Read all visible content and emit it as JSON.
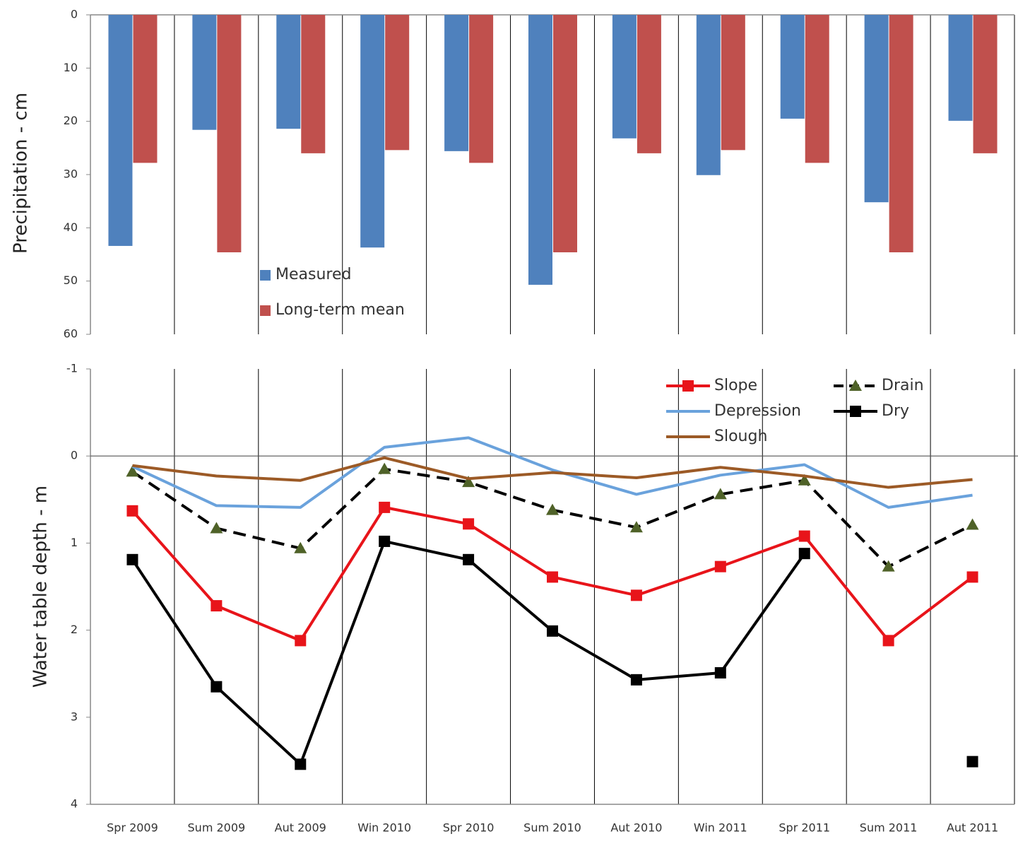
{
  "chart_data": [
    {
      "type": "bar",
      "ylabel": "Precipitation - cm",
      "ylim": [
        0,
        60
      ],
      "y_reversed": true,
      "yticks": [
        0,
        10,
        20,
        30,
        40,
        50,
        60
      ],
      "legend": "bottom-left",
      "series": [
        {
          "name": "Measured",
          "color": "#4f81bd",
          "values": [
            43.4,
            21.6,
            21.4,
            43.7,
            25.6,
            50.7,
            23.2,
            30.1,
            19.5,
            35.2,
            19.9
          ]
        },
        {
          "name": "Long-term mean",
          "color": "#c0504d",
          "values": [
            27.8,
            44.6,
            26.0,
            25.4,
            27.8,
            44.6,
            26.0,
            25.4,
            27.8,
            44.6,
            26.0
          ]
        }
      ]
    },
    {
      "type": "line",
      "ylabel": "Water table depth - m",
      "ylim": [
        -1,
        4
      ],
      "y_reversed": true,
      "yticks": [
        -1,
        0,
        1,
        2,
        3,
        4
      ],
      "legend": "top-right",
      "categories": [
        "Spr 2009",
        "Sum 2009",
        "Aut 2009",
        "Win 2010",
        "Spr 2010",
        "Sum 2010",
        "Aut 2010",
        "Win 2011",
        "Spr 2011",
        "Sum 2011",
        "Aut 2011"
      ],
      "series": [
        {
          "name": "Slope",
          "color": "#e8141a",
          "marker": "square",
          "dash": false,
          "values": [
            0.63,
            1.72,
            2.12,
            0.59,
            0.78,
            1.39,
            1.6,
            1.27,
            0.92,
            2.12,
            1.39
          ]
        },
        {
          "name": "Drain",
          "color": "#000000",
          "marker": "triangle",
          "marker_color": "#4f6228",
          "dash": true,
          "values": [
            0.18,
            0.83,
            1.06,
            0.15,
            0.3,
            0.62,
            0.82,
            0.44,
            0.28,
            1.27,
            0.79
          ]
        },
        {
          "name": "Depression",
          "color": "#6aa2dc",
          "marker": "none",
          "dash": false,
          "values": [
            0.12,
            0.57,
            0.59,
            -0.1,
            -0.21,
            0.16,
            0.44,
            0.22,
            0.1,
            0.59,
            0.45
          ]
        },
        {
          "name": "Dry",
          "color": "#000000",
          "marker": "square",
          "dash": false,
          "values": [
            1.19,
            2.65,
            3.54,
            0.98,
            1.19,
            2.01,
            2.57,
            2.49,
            1.12,
            null,
            3.51
          ]
        },
        {
          "name": "Slough",
          "color": "#9c5a26",
          "marker": "none",
          "dash": false,
          "values": [
            0.11,
            0.23,
            0.28,
            0.02,
            0.26,
            0.19,
            0.25,
            0.13,
            0.23,
            0.36,
            0.27
          ]
        }
      ]
    }
  ]
}
